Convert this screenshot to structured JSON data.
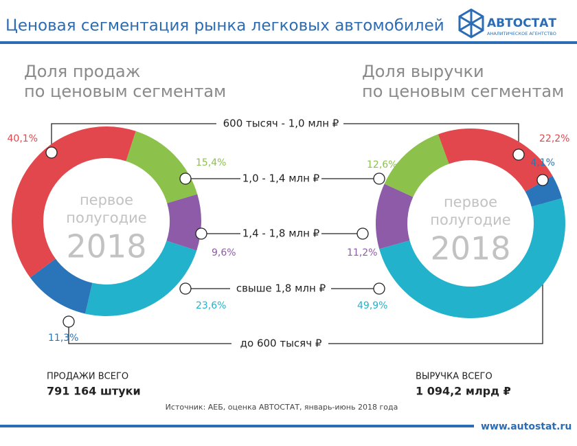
{
  "header": {
    "title": "Ценовая сегментация рынка легковых автомобилей",
    "logo": "АВТОСТАТ",
    "logo_subtitle": "АНАЛИТИЧЕСКОЕ АГЕНТСТВО"
  },
  "chart_data": [
    {
      "type": "donut",
      "title": [
        "Доля продаж",
        "по ценовым сегментам"
      ],
      "categories": [
        "600 тысяч - 1,0 млн ₽",
        "1,0 - 1,4 млн ₽",
        "1,4 - 1,8 млн ₽",
        "свыше 1,8 млн ₽",
        "до 600 тысяч ₽"
      ],
      "values": [
        40.1,
        15.4,
        9.6,
        23.6,
        11.3
      ],
      "value_labels": [
        "40,1%",
        "15,4%",
        "9,6%",
        "23,6%",
        "11,3%"
      ],
      "colors": [
        "#e2474d",
        "#8cc14b",
        "#8d5ba8",
        "#22b2cb",
        "#2a74ba"
      ],
      "center_text": [
        "первое",
        "полугодие",
        "2018"
      ]
    },
    {
      "type": "donut",
      "title": [
        "Доля выручки",
        "по ценовым сегментам"
      ],
      "values": [
        22.2,
        12.6,
        11.2,
        49.9,
        4.1
      ],
      "value_labels": [
        "22,2%",
        "12,6%",
        "11,2%",
        "49,9%",
        "4,1%"
      ],
      "colors": [
        "#e2474d",
        "#8cc14b",
        "#8d5ba8",
        "#22b2cb",
        "#2a74ba"
      ],
      "center_text": [
        "первое",
        "полугодие",
        "2018"
      ]
    }
  ],
  "totals": [
    {
      "label": "ПРОДАЖИ ВСЕГО",
      "value": "791 164 штуки"
    },
    {
      "label": "ВЫРУЧКА ВСЕГО",
      "value": "1 094,2 млрд ₽"
    }
  ],
  "source": "Источник: АЕБ, оценка АВТОСТАТ, январь-июнь 2018 года",
  "url": "www.autostat.ru"
}
